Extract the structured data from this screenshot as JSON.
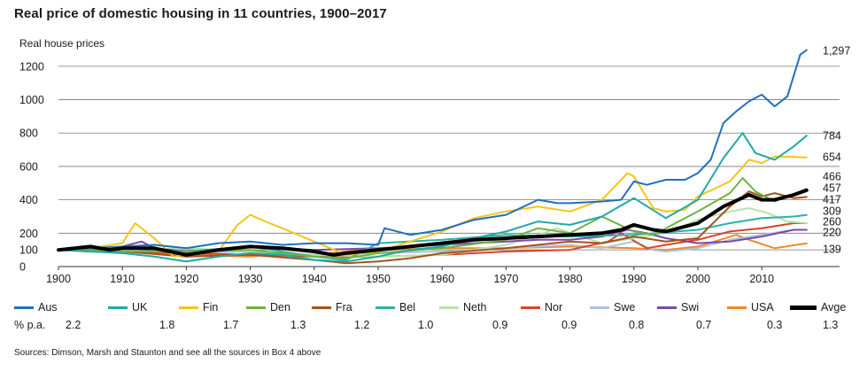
{
  "title": "Real price of domestic housing in 11 countries, 1900–2017",
  "ylabel": "Real house prices",
  "source": "Sources: Dimson, Marsh and Staunton and see all the sources in Box 4 above",
  "pct_label": "% p.a.",
  "colors": {
    "Aus": "#1f6fbf",
    "UK": "#1fa9a8",
    "Fin": "#f5c518",
    "Den": "#6db33f",
    "Fra": "#a4521c",
    "Bel": "#2ab2a6",
    "Neth": "#b7e4a7",
    "Nor": "#d9432a",
    "Swe": "#a9c4e0",
    "Swi": "#7b4aa8",
    "USA": "#ef8a25",
    "Avge": "#000000"
  },
  "chart_data": {
    "type": "line",
    "title": "Real price of domestic housing in 11 countries, 1900–2017",
    "ylabel": "Real house prices",
    "xlim": [
      1900,
      2018
    ],
    "ylim": [
      0,
      1300
    ],
    "yticks": [
      0,
      100,
      200,
      400,
      600,
      800,
      1000,
      1200
    ],
    "xticks": [
      1900,
      1910,
      1920,
      1930,
      1940,
      1950,
      1960,
      1970,
      1980,
      1990,
      2000,
      2010
    ],
    "grid": "horizontal",
    "end_labels": [
      "1,297",
      "784",
      "654",
      "466",
      "457",
      "417",
      "309",
      "260",
      "220",
      "139"
    ],
    "series": [
      {
        "name": "Aus",
        "growth": "2.2",
        "x": [
          1900,
          1905,
          1910,
          1915,
          1920,
          1925,
          1930,
          1935,
          1940,
          1945,
          1950,
          1951,
          1955,
          1960,
          1965,
          1970,
          1975,
          1978,
          1980,
          1985,
          1988,
          1990,
          1992,
          1995,
          1998,
          2000,
          2002,
          2004,
          2006,
          2008,
          2010,
          2012,
          2014,
          2016,
          2017
        ],
        "y": [
          100,
          110,
          120,
          130,
          110,
          140,
          150,
          130,
          140,
          140,
          130,
          230,
          190,
          220,
          280,
          310,
          400,
          380,
          380,
          390,
          400,
          510,
          490,
          520,
          520,
          560,
          640,
          860,
          930,
          990,
          1030,
          960,
          1020,
          1270,
          1297
        ]
      },
      {
        "name": "UK",
        "growth": "1.8",
        "x": [
          1900,
          1910,
          1915,
          1920,
          1925,
          1930,
          1935,
          1940,
          1945,
          1950,
          1955,
          1960,
          1965,
          1970,
          1975,
          1980,
          1985,
          1990,
          1995,
          2000,
          2004,
          2007,
          2009,
          2012,
          2015,
          2017
        ],
        "y": [
          100,
          80,
          60,
          30,
          60,
          80,
          70,
          40,
          30,
          60,
          100,
          120,
          170,
          210,
          270,
          250,
          300,
          410,
          290,
          400,
          650,
          800,
          680,
          640,
          720,
          784
        ]
      },
      {
        "name": "Fin",
        "growth": "1.7",
        "x": [
          1900,
          1905,
          1910,
          1912,
          1915,
          1918,
          1920,
          1925,
          1928,
          1930,
          1933,
          1935,
          1940,
          1945,
          1950,
          1955,
          1960,
          1965,
          1970,
          1975,
          1980,
          1985,
          1989,
          1990,
          1993,
          1995,
          1998,
          2000,
          2005,
          2008,
          2010,
          2012,
          2017
        ],
        "y": [
          100,
          110,
          140,
          260,
          170,
          60,
          70,
          90,
          250,
          310,
          260,
          230,
          150,
          70,
          90,
          150,
          210,
          290,
          330,
          360,
          330,
          400,
          560,
          540,
          350,
          330,
          340,
          420,
          510,
          640,
          620,
          660,
          654
        ]
      },
      {
        "name": "Den",
        "growth": "1.3",
        "x": [
          1900,
          1910,
          1920,
          1930,
          1940,
          1945,
          1950,
          1960,
          1970,
          1975,
          1980,
          1985,
          1990,
          1993,
          1995,
          2000,
          2005,
          2007,
          2009,
          2012,
          2017
        ],
        "y": [
          100,
          90,
          90,
          100,
          60,
          50,
          80,
          110,
          160,
          230,
          200,
          300,
          210,
          190,
          230,
          330,
          440,
          530,
          450,
          390,
          466
        ]
      },
      {
        "name": "Fra",
        "growth": "1.2",
        "x": [
          1900,
          1910,
          1920,
          1930,
          1940,
          1945,
          1950,
          1955,
          1960,
          1970,
          1980,
          1985,
          1990,
          1995,
          2000,
          2005,
          2008,
          2010,
          2012,
          2015,
          2017
        ],
        "y": [
          100,
          90,
          60,
          70,
          40,
          20,
          30,
          50,
          80,
          110,
          150,
          140,
          180,
          150,
          170,
          360,
          450,
          420,
          440,
          410,
          417
        ]
      },
      {
        "name": "Bel",
        "growth": "1.0",
        "x": [
          1900,
          1910,
          1920,
          1930,
          1940,
          1945,
          1950,
          1960,
          1970,
          1980,
          1990,
          2000,
          2005,
          2010,
          2015,
          2017
        ],
        "y": [
          100,
          110,
          90,
          120,
          60,
          40,
          140,
          160,
          190,
          180,
          190,
          220,
          260,
          290,
          300,
          309
        ]
      },
      {
        "name": "Neth",
        "growth": "0.9",
        "x": [
          1900,
          1910,
          1920,
          1930,
          1940,
          1950,
          1960,
          1970,
          1975,
          1978,
          1980,
          1985,
          1990,
          1995,
          2000,
          2005,
          2008,
          2011,
          2014,
          2017
        ],
        "y": [
          100,
          100,
          110,
          90,
          70,
          60,
          70,
          130,
          190,
          230,
          200,
          140,
          170,
          200,
          280,
          330,
          350,
          320,
          270,
          260
        ]
      },
      {
        "name": "Nor",
        "growth": "0.9",
        "x": [
          1900,
          1910,
          1920,
          1930,
          1940,
          1950,
          1960,
          1970,
          1980,
          1986,
          1988,
          1992,
          1995,
          2000,
          2005,
          2010,
          2015,
          2017
        ],
        "y": [
          100,
          90,
          80,
          70,
          60,
          60,
          70,
          90,
          100,
          150,
          200,
          110,
          130,
          160,
          210,
          230,
          260,
          260
        ]
      },
      {
        "name": "Swe",
        "growth": "0.8",
        "x": [
          1900,
          1910,
          1920,
          1930,
          1940,
          1950,
          1960,
          1970,
          1980,
          1985,
          1990,
          1993,
          1995,
          2000,
          2005,
          2010,
          2015,
          2017
        ],
        "y": [
          100,
          110,
          80,
          90,
          70,
          80,
          90,
          110,
          130,
          110,
          150,
          100,
          90,
          110,
          160,
          190,
          220,
          220
        ]
      },
      {
        "name": "Swi",
        "growth": "0.7",
        "x": [
          1900,
          1905,
          1910,
          1913,
          1915,
          1920,
          1930,
          1940,
          1950,
          1960,
          1970,
          1975,
          1980,
          1985,
          1989,
          1992,
          1995,
          2000,
          2005,
          2010,
          2015,
          2017
        ],
        "y": [
          100,
          90,
          120,
          150,
          110,
          90,
          120,
          100,
          110,
          130,
          150,
          160,
          160,
          180,
          220,
          200,
          170,
          140,
          150,
          180,
          220,
          220
        ]
      },
      {
        "name": "USA",
        "growth": "0.3",
        "x": [
          1900,
          1910,
          1920,
          1930,
          1935,
          1940,
          1945,
          1950,
          1960,
          1970,
          1980,
          1990,
          1995,
          2000,
          2006,
          2008,
          2012,
          2017
        ],
        "y": [
          100,
          90,
          70,
          60,
          80,
          70,
          90,
          100,
          110,
          110,
          120,
          110,
          100,
          120,
          190,
          160,
          110,
          139
        ]
      },
      {
        "name": "Avge",
        "growth": "1.3",
        "x": [
          1900,
          1905,
          1908,
          1910,
          1915,
          1920,
          1925,
          1930,
          1935,
          1940,
          1943,
          1945,
          1950,
          1955,
          1960,
          1965,
          1970,
          1975,
          1980,
          1985,
          1988,
          1990,
          1993,
          1995,
          2000,
          2004,
          2008,
          2010,
          2012,
          2015,
          2017
        ],
        "y": [
          100,
          120,
          100,
          110,
          110,
          70,
          100,
          120,
          110,
          90,
          70,
          80,
          100,
          120,
          140,
          160,
          170,
          180,
          190,
          200,
          220,
          250,
          220,
          210,
          260,
          360,
          430,
          400,
          400,
          430,
          457
        ]
      }
    ]
  }
}
